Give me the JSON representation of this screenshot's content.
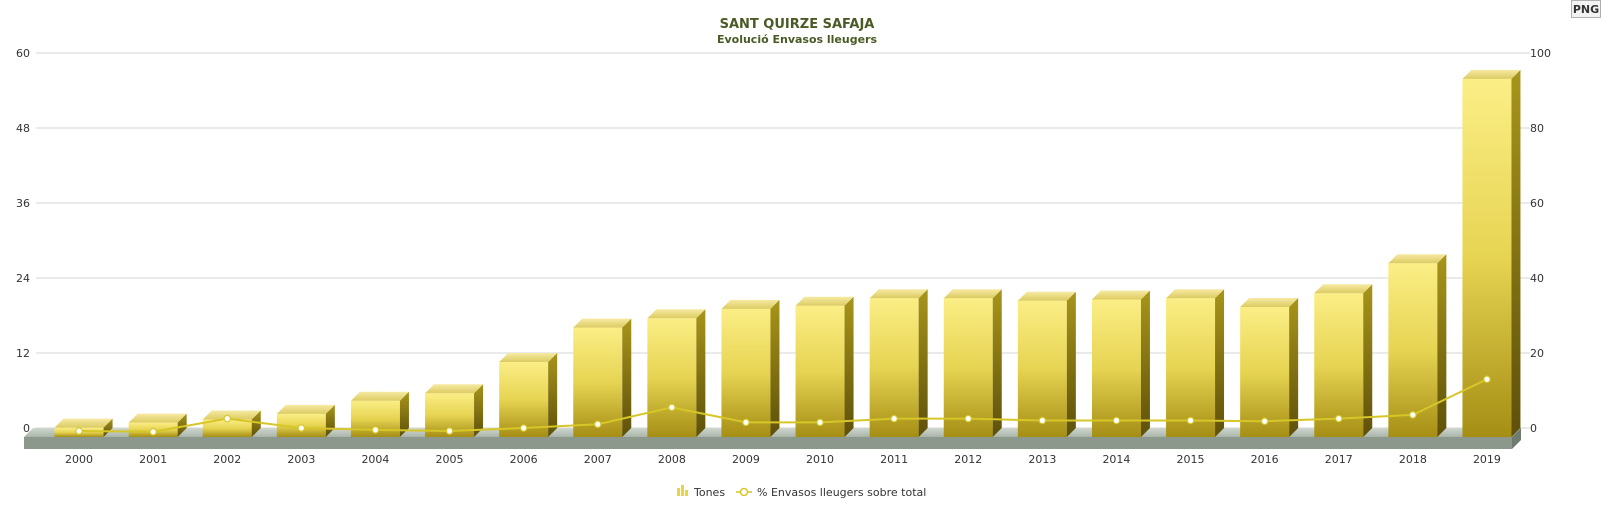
{
  "export_button": {
    "label": "PNG"
  },
  "chart_data": {
    "type": "bar",
    "title": "SANT QUIRZE SAFAJA",
    "subtitle": "Evolució Envasos lleugers",
    "categories": [
      "2000",
      "2001",
      "2002",
      "2003",
      "2004",
      "2005",
      "2006",
      "2007",
      "2008",
      "2009",
      "2010",
      "2011",
      "2012",
      "2013",
      "2014",
      "2015",
      "2016",
      "2017",
      "2018",
      "2019"
    ],
    "series": [
      {
        "name": "Tones",
        "kind": "bar",
        "axis": "left",
        "values": [
          1.5,
          2.3,
          2.8,
          3.7,
          5.8,
          7.0,
          12.0,
          17.5,
          19.0,
          20.5,
          21.0,
          22.2,
          22.2,
          21.8,
          22.0,
          22.2,
          20.8,
          23.0,
          27.8,
          57.3
        ]
      },
      {
        "name": "% Envasos lleugers sobre total",
        "kind": "line",
        "axis": "right",
        "values": [
          -0.8,
          -1.0,
          2.5,
          0.0,
          -0.5,
          -0.8,
          0.0,
          1.0,
          5.5,
          1.5,
          1.5,
          2.5,
          2.5,
          2.0,
          2.0,
          2.0,
          1.8,
          2.5,
          3.5,
          13.0
        ]
      }
    ],
    "y_left": {
      "ticks": [
        0,
        12,
        24,
        36,
        48,
        60
      ],
      "ylim": [
        0,
        60
      ]
    },
    "y_right": {
      "ticks": [
        0,
        20,
        40,
        60,
        80,
        100
      ],
      "ylim": [
        0,
        100
      ]
    },
    "legend_position": "bottom-center",
    "grid": true,
    "colors": {
      "bar_light": "#f8ea7e",
      "bar_dark": "#a08a10",
      "line": "#d6c627",
      "title": "#4a5a25"
    }
  }
}
